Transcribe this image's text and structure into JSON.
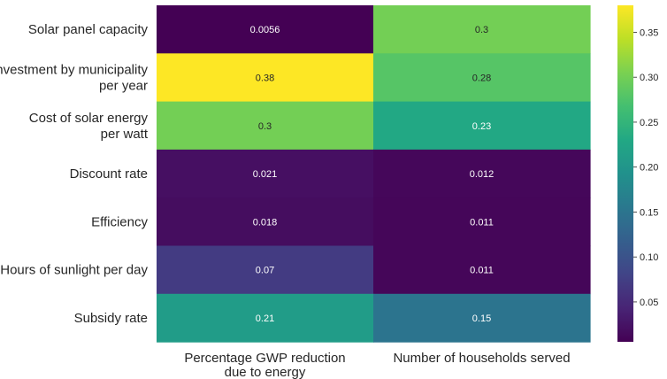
{
  "chart_data": {
    "type": "heatmap",
    "title": "",
    "xlabel": "",
    "ylabel": "",
    "rows": [
      [
        "Solar panel capacity"
      ],
      [
        "Investment by municipality",
        "per year"
      ],
      [
        "Cost of solar energy",
        "per watt"
      ],
      [
        "Discount rate"
      ],
      [
        "Efficiency"
      ],
      [
        "Hours of sunlight per day"
      ],
      [
        "Subsidy rate"
      ]
    ],
    "columns": [
      [
        "Percentage GWP reduction",
        "due to energy"
      ],
      [
        "Number of households served"
      ]
    ],
    "values": [
      [
        0.0056,
        0.3
      ],
      [
        0.38,
        0.28
      ],
      [
        0.3,
        0.23
      ],
      [
        0.021,
        0.012
      ],
      [
        0.018,
        0.011
      ],
      [
        0.07,
        0.011
      ],
      [
        0.21,
        0.15
      ]
    ],
    "cell_labels": [
      [
        "0.0056",
        "0.3"
      ],
      [
        "0.38",
        "0.28"
      ],
      [
        "0.3",
        "0.23"
      ],
      [
        "0.021",
        "0.012"
      ],
      [
        "0.018",
        "0.011"
      ],
      [
        "0.07",
        "0.011"
      ],
      [
        "0.21",
        "0.15"
      ]
    ],
    "colormap": "viridis",
    "vmin": 0.0056,
    "vmax": 0.38,
    "colorbar_ticks": [
      0.05,
      0.1,
      0.15,
      0.2,
      0.25,
      0.3,
      0.35
    ],
    "colorbar_tick_labels": [
      "0.05",
      "0.10",
      "0.15",
      "0.20",
      "0.25",
      "0.30",
      "0.35"
    ],
    "grid": false,
    "legend": "colorbar-right"
  }
}
